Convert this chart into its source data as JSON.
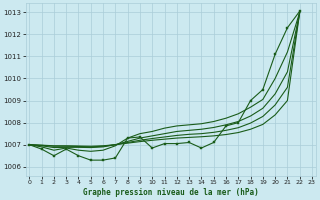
{
  "title": "Graphe pression niveau de la mer (hPa)",
  "yticks": [
    1006,
    1007,
    1008,
    1009,
    1010,
    1011,
    1012,
    1013
  ],
  "xticks": [
    0,
    1,
    2,
    3,
    4,
    5,
    6,
    7,
    8,
    9,
    10,
    11,
    12,
    13,
    14,
    15,
    16,
    17,
    18,
    19,
    20,
    21,
    22,
    23
  ],
  "ylim": [
    1005.6,
    1013.4
  ],
  "xlim": [
    -0.3,
    23.3
  ],
  "bg_color": "#cce9f0",
  "grid_color": "#aacdd8",
  "line_color": "#1a5c1a",
  "series_main": [
    1007.0,
    1006.8,
    1006.5,
    1006.8,
    1006.5,
    1006.3,
    1006.3,
    1006.4,
    1007.3,
    1007.35,
    1006.85,
    1007.05,
    1007.05,
    1007.1,
    1006.85,
    1007.1,
    1007.85,
    1008.0,
    1009.0,
    1009.5,
    1011.1,
    1012.3,
    1013.05,
    null
  ],
  "series_smooth1": [
    1007.0,
    1006.9,
    1006.75,
    1006.85,
    1006.75,
    1006.7,
    1006.75,
    1006.95,
    1007.3,
    1007.5,
    1007.6,
    1007.75,
    1007.85,
    1007.9,
    1007.95,
    1008.05,
    1008.2,
    1008.4,
    1008.7,
    1009.05,
    1010.0,
    1011.2,
    1013.0,
    null
  ],
  "series_smooth2": [
    1007.0,
    1006.95,
    1006.87,
    1006.88,
    1006.88,
    1006.87,
    1006.9,
    1007.0,
    1007.15,
    1007.3,
    1007.4,
    1007.5,
    1007.6,
    1007.65,
    1007.7,
    1007.78,
    1007.9,
    1008.05,
    1008.3,
    1008.65,
    1009.3,
    1010.3,
    1013.0,
    null
  ],
  "series_smooth3": [
    1007.0,
    1006.97,
    1006.93,
    1006.93,
    1006.92,
    1006.9,
    1006.93,
    1007.0,
    1007.1,
    1007.2,
    1007.28,
    1007.35,
    1007.42,
    1007.47,
    1007.5,
    1007.56,
    1007.65,
    1007.77,
    1007.98,
    1008.28,
    1008.8,
    1009.6,
    1013.0,
    null
  ],
  "series_smooth4": [
    1007.0,
    1006.98,
    1006.95,
    1006.95,
    1006.94,
    1006.93,
    1006.95,
    1007.0,
    1007.07,
    1007.14,
    1007.2,
    1007.25,
    1007.3,
    1007.33,
    1007.36,
    1007.4,
    1007.46,
    1007.55,
    1007.7,
    1007.92,
    1008.35,
    1009.0,
    1013.0,
    null
  ]
}
